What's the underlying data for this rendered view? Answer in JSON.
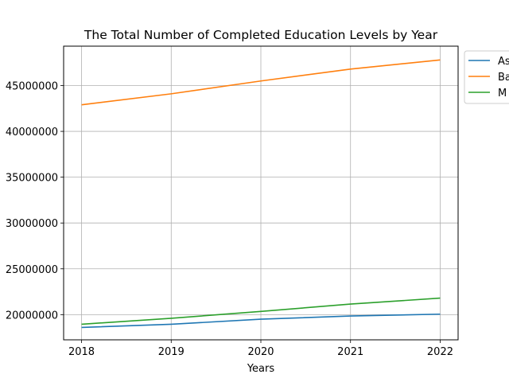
{
  "chart_data": {
    "type": "line",
    "title": "The Total Number of Completed Education Levels by Year",
    "xlabel": "Years",
    "ylabel": "",
    "x": [
      2018,
      2019,
      2020,
      2021,
      2022
    ],
    "xlim": [
      2017.8,
      2022.2
    ],
    "ylim": [
      17250000,
      49300000
    ],
    "yticks": [
      20000000,
      25000000,
      30000000,
      35000000,
      40000000,
      45000000
    ],
    "grid": true,
    "legend_position": "outside-top-right",
    "series": [
      {
        "name": "As",
        "color": "#1f77b4",
        "values": [
          18600000,
          18950000,
          19500000,
          19850000,
          20050000
        ]
      },
      {
        "name": "Ba",
        "color": "#ff7f0e",
        "values": [
          42900000,
          44100000,
          45500000,
          46800000,
          47800000
        ]
      },
      {
        "name": "M",
        "color": "#2ca02c",
        "values": [
          18950000,
          19600000,
          20350000,
          21150000,
          21800000
        ]
      }
    ]
  }
}
